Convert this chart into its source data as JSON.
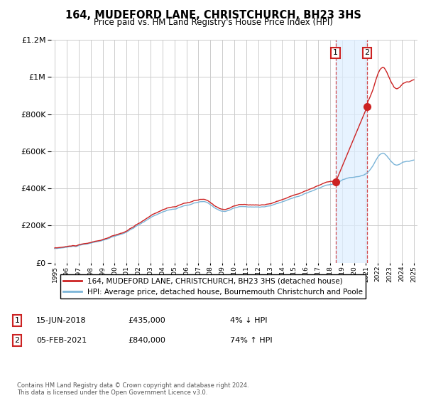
{
  "title": "164, MUDEFORD LANE, CHRISTCHURCH, BH23 3HS",
  "subtitle": "Price paid vs. HM Land Registry's House Price Index (HPI)",
  "legend_line1": "164, MUDEFORD LANE, CHRISTCHURCH, BH23 3HS (detached house)",
  "legend_line2": "HPI: Average price, detached house, Bournemouth Christchurch and Poole",
  "sale1_date": "15-JUN-2018",
  "sale1_price": 435000,
  "sale1_note": "4% ↓ HPI",
  "sale2_date": "05-FEB-2021",
  "sale2_price": 840000,
  "sale2_note": "74% ↑ HPI",
  "sale1_year": 2018.46,
  "sale2_year": 2021.09,
  "ylabel_max": 1200000,
  "footer": "Contains HM Land Registry data © Crown copyright and database right 2024.\nThis data is licensed under the Open Government Licence v3.0.",
  "hpi_color": "#7ab4d8",
  "property_color": "#cc2222",
  "shade_color": "#ddeeff",
  "grid_color": "#cccccc",
  "background_color": "#ffffff"
}
